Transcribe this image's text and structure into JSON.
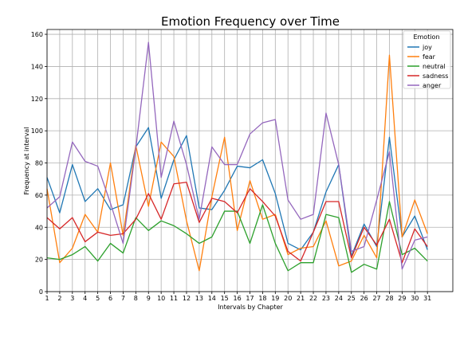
{
  "chart_data": {
    "type": "line",
    "title": "Emotion Frequency over Time",
    "xlabel": "Intervals by Chapter",
    "ylabel": "Frequency at interval",
    "x": [
      1,
      2,
      3,
      4,
      5,
      6,
      7,
      8,
      9,
      10,
      11,
      12,
      13,
      14,
      15,
      16,
      17,
      18,
      19,
      20,
      21,
      22,
      23,
      24,
      25,
      26,
      27,
      28,
      29,
      30,
      31
    ],
    "xlim": [
      1,
      33
    ],
    "ylim": [
      0,
      163
    ],
    "yticks": [
      0,
      20,
      40,
      60,
      80,
      100,
      120,
      140,
      160
    ],
    "grid": true,
    "legend_title": "Emotion",
    "legend_position": "top-right",
    "series": [
      {
        "name": "joy",
        "color": "#1f77b4",
        "values": [
          71,
          49,
          79,
          56,
          64,
          51,
          54,
          90,
          102,
          58,
          82,
          97,
          52,
          51,
          63,
          78,
          77,
          82,
          61,
          30,
          26,
          37,
          62,
          79,
          22,
          42,
          28,
          96,
          34,
          47,
          26
        ]
      },
      {
        "name": "fear",
        "color": "#ff7f0e",
        "values": [
          64,
          18,
          27,
          48,
          37,
          80,
          35,
          91,
          53,
          93,
          84,
          44,
          13,
          59,
          96,
          38,
          69,
          45,
          48,
          23,
          27,
          28,
          44,
          16,
          19,
          35,
          21,
          147,
          34,
          57,
          36
        ]
      },
      {
        "name": "neutral",
        "color": "#2ca02c",
        "values": [
          21,
          20,
          23,
          28,
          19,
          30,
          24,
          46,
          38,
          44,
          41,
          36,
          30,
          34,
          50,
          50,
          30,
          54,
          30,
          13,
          18,
          18,
          48,
          46,
          12,
          17,
          14,
          56,
          23,
          27,
          19
        ]
      },
      {
        "name": "sadness",
        "color": "#d62728",
        "values": [
          46,
          39,
          46,
          31,
          37,
          35,
          36,
          45,
          61,
          45,
          67,
          68,
          43,
          58,
          56,
          49,
          64,
          56,
          47,
          25,
          19,
          37,
          56,
          56,
          21,
          40,
          29,
          45,
          18,
          39,
          28
        ]
      },
      {
        "name": "anger",
        "color": "#9467bd",
        "values": [
          52,
          59,
          93,
          81,
          78,
          55,
          30,
          89,
          155,
          71,
          106,
          79,
          45,
          90,
          79,
          79,
          98,
          105,
          107,
          57,
          45,
          48,
          111,
          79,
          25,
          28,
          57,
          87,
          14,
          32,
          34
        ]
      }
    ]
  }
}
